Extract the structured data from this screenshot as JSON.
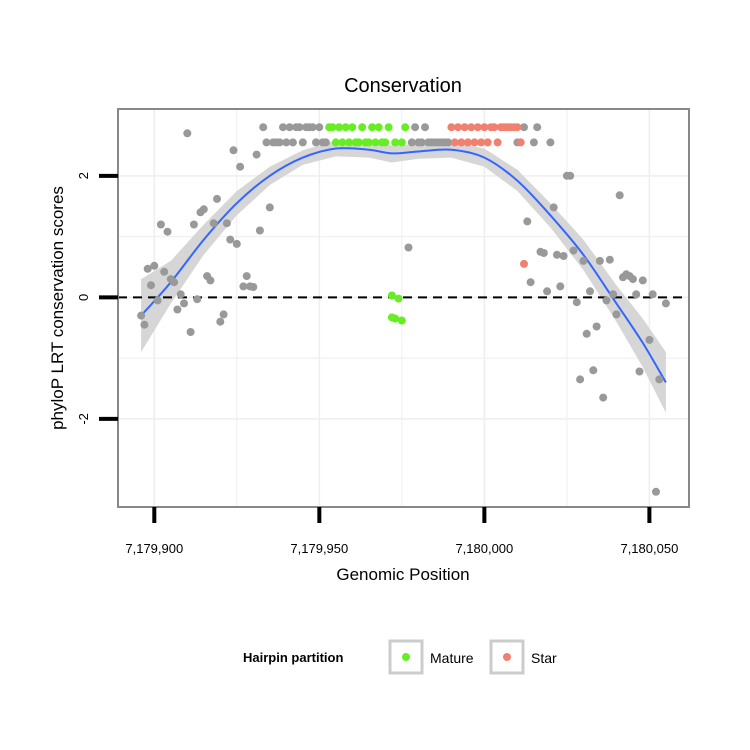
{
  "chart_data": {
    "type": "scatter",
    "title": "Conservation",
    "xlabel": "Genomic Position",
    "ylabel": "phyloP LRT conservation scores",
    "xlim": [
      7179889,
      7180062
    ],
    "ylim": [
      -3.45,
      3.1
    ],
    "x_ticks": [
      {
        "value": 7179900,
        "label": "7,179,900"
      },
      {
        "value": 7179950,
        "label": "7,179,950"
      },
      {
        "value": 7180000,
        "label": "7,180,000"
      },
      {
        "value": 7180050,
        "label": "7,180,050"
      }
    ],
    "y_ticks": [
      {
        "value": -2,
        "label": "-2"
      },
      {
        "value": 0,
        "label": "0"
      },
      {
        "value": 2,
        "label": "2"
      }
    ],
    "x_minor_grid": [
      7179925,
      7179975,
      7180025
    ],
    "y_minor_grid": [
      -1,
      1
    ],
    "reference_line": {
      "y": 0,
      "style": "dashed"
    },
    "legend": {
      "title": "Hairpin partition",
      "entries": [
        {
          "label": "Mature",
          "color": "#66ee22"
        },
        {
          "label": "Star",
          "color": "#f08070"
        }
      ]
    },
    "colors": {
      "other": "#999999",
      "mature": "#66ee22",
      "star": "#f08070",
      "smooth": "#3366ff",
      "band": "#d4d4d4",
      "panel_border": "#888888",
      "grid": "#eeeeee"
    },
    "series": [
      {
        "name": "Other",
        "points": [
          [
            7179896,
            -0.3
          ],
          [
            7179897,
            -0.45
          ],
          [
            7179898,
            0.47
          ],
          [
            7179899,
            0.2
          ],
          [
            7179900,
            0.52
          ],
          [
            7179901,
            -0.05
          ],
          [
            7179902,
            1.2
          ],
          [
            7179903,
            0.42
          ],
          [
            7179904,
            1.08
          ],
          [
            7179905,
            0.3
          ],
          [
            7179906,
            0.25
          ],
          [
            7179907,
            -0.2
          ],
          [
            7179908,
            0.05
          ],
          [
            7179909,
            -0.1
          ],
          [
            7179910,
            2.7
          ],
          [
            7179911,
            -0.57
          ],
          [
            7179912,
            1.2
          ],
          [
            7179913,
            -0.03
          ],
          [
            7179914,
            1.4
          ],
          [
            7179915,
            1.45
          ],
          [
            7179916,
            0.35
          ],
          [
            7179917,
            0.28
          ],
          [
            7179918,
            1.22
          ],
          [
            7179919,
            1.62
          ],
          [
            7179920,
            -0.4
          ],
          [
            7179921,
            -0.28
          ],
          [
            7179922,
            1.22
          ],
          [
            7179923,
            0.95
          ],
          [
            7179924,
            2.42
          ],
          [
            7179925,
            0.88
          ],
          [
            7179926,
            2.15
          ],
          [
            7179927,
            0.18
          ],
          [
            7179928,
            0.35
          ],
          [
            7179929,
            0.18
          ],
          [
            7179930,
            0.17
          ],
          [
            7179931,
            2.35
          ],
          [
            7179932,
            1.1
          ],
          [
            7179933,
            2.8
          ],
          [
            7179934,
            2.55
          ],
          [
            7179935,
            1.48
          ],
          [
            7179936,
            2.55
          ],
          [
            7179937,
            2.55
          ],
          [
            7179938,
            2.55
          ],
          [
            7179939,
            2.8
          ],
          [
            7179940,
            2.55
          ],
          [
            7179941,
            2.8
          ],
          [
            7179942,
            2.55
          ],
          [
            7179943,
            2.8
          ],
          [
            7179944,
            2.8
          ],
          [
            7179945,
            2.55
          ],
          [
            7179946,
            2.8
          ],
          [
            7179947,
            2.8
          ],
          [
            7179948,
            2.8
          ],
          [
            7179949,
            2.55
          ],
          [
            7179950,
            2.8
          ],
          [
            7179951,
            2.55
          ],
          [
            7179952,
            2.55
          ],
          [
            7179977,
            0.82
          ],
          [
            7179978,
            2.55
          ],
          [
            7179979,
            2.8
          ],
          [
            7179980,
            2.55
          ],
          [
            7179981,
            2.55
          ],
          [
            7179982,
            2.8
          ],
          [
            7179983,
            2.55
          ],
          [
            7179984,
            2.55
          ],
          [
            7179985,
            2.55
          ],
          [
            7179986,
            2.55
          ],
          [
            7179987,
            2.55
          ],
          [
            7179988,
            2.55
          ],
          [
            7179989,
            2.55
          ],
          [
            7180010,
            2.55
          ],
          [
            7180012,
            2.8
          ],
          [
            7180013,
            1.25
          ],
          [
            7180014,
            0.25
          ],
          [
            7180015,
            2.55
          ],
          [
            7180016,
            2.8
          ],
          [
            7180017,
            0.75
          ],
          [
            7180018,
            0.73
          ],
          [
            7180019,
            0.1
          ],
          [
            7180020,
            2.55
          ],
          [
            7180021,
            1.48
          ],
          [
            7180022,
            0.7
          ],
          [
            7180023,
            0.18
          ],
          [
            7180024,
            0.68
          ],
          [
            7180025,
            2.0
          ],
          [
            7180026,
            2.0
          ],
          [
            7180027,
            0.77
          ],
          [
            7180028,
            -0.08
          ],
          [
            7180029,
            -1.35
          ],
          [
            7180030,
            0.6
          ],
          [
            7180031,
            -0.6
          ],
          [
            7180032,
            0.1
          ],
          [
            7180033,
            -1.2
          ],
          [
            7180034,
            -0.48
          ],
          [
            7180035,
            0.6
          ],
          [
            7180036,
            -1.65
          ],
          [
            7180037,
            -0.05
          ],
          [
            7180038,
            0.62
          ],
          [
            7180039,
            0.05
          ],
          [
            7180040,
            -0.28
          ],
          [
            7180041,
            1.68
          ],
          [
            7180042,
            0.33
          ],
          [
            7180043,
            0.38
          ],
          [
            7180044,
            0.35
          ],
          [
            7180045,
            0.3
          ],
          [
            7180046,
            0.05
          ],
          [
            7180047,
            -1.22
          ],
          [
            7180048,
            0.28
          ],
          [
            7180050,
            -0.7
          ],
          [
            7180051,
            0.05
          ],
          [
            7180052,
            -3.2
          ],
          [
            7180053,
            -1.35
          ],
          [
            7180055,
            -0.1
          ]
        ]
      },
      {
        "name": "Mature",
        "points": [
          [
            7179953,
            2.8
          ],
          [
            7179954,
            2.8
          ],
          [
            7179955,
            2.55
          ],
          [
            7179956,
            2.8
          ],
          [
            7179957,
            2.55
          ],
          [
            7179958,
            2.8
          ],
          [
            7179959,
            2.55
          ],
          [
            7179960,
            2.8
          ],
          [
            7179961,
            2.55
          ],
          [
            7179962,
            2.55
          ],
          [
            7179963,
            2.8
          ],
          [
            7179964,
            2.55
          ],
          [
            7179965,
            2.55
          ],
          [
            7179966,
            2.8
          ],
          [
            7179967,
            2.55
          ],
          [
            7179968,
            2.8
          ],
          [
            7179969,
            2.55
          ],
          [
            7179970,
            2.55
          ],
          [
            7179971,
            2.8
          ],
          [
            7179972,
            0.03
          ],
          [
            7179972,
            -0.33
          ],
          [
            7179973,
            2.55
          ],
          [
            7179973,
            -0.35
          ],
          [
            7179974,
            -0.02
          ],
          [
            7179975,
            -0.38
          ],
          [
            7179975,
            2.55
          ],
          [
            7179976,
            2.8
          ]
        ]
      },
      {
        "name": "Star",
        "points": [
          [
            7179990,
            2.8
          ],
          [
            7179991,
            2.55
          ],
          [
            7179992,
            2.8
          ],
          [
            7179993,
            2.55
          ],
          [
            7179994,
            2.8
          ],
          [
            7179995,
            2.55
          ],
          [
            7179996,
            2.8
          ],
          [
            7179997,
            2.55
          ],
          [
            7179998,
            2.8
          ],
          [
            7179999,
            2.55
          ],
          [
            7180000,
            2.8
          ],
          [
            7180001,
            2.55
          ],
          [
            7180002,
            2.8
          ],
          [
            7180003,
            2.8
          ],
          [
            7180004,
            2.55
          ],
          [
            7180005,
            2.8
          ],
          [
            7180006,
            2.8
          ],
          [
            7180007,
            2.8
          ],
          [
            7180008,
            2.8
          ],
          [
            7180009,
            2.8
          ],
          [
            7180010,
            2.8
          ],
          [
            7180011,
            2.55
          ],
          [
            7180012,
            0.55
          ]
        ]
      }
    ],
    "smooth": {
      "x": [
        7179896,
        7179905,
        7179915,
        7179925,
        7179935,
        7179945,
        7179955,
        7179965,
        7179972,
        7179980,
        7179990,
        7180000,
        7180010,
        7180020,
        7180030,
        7180040,
        7180048,
        7180055
      ],
      "y": [
        -0.3,
        0.25,
        0.95,
        1.55,
        2.0,
        2.3,
        2.45,
        2.43,
        2.37,
        2.4,
        2.43,
        2.3,
        1.92,
        1.35,
        0.7,
        -0.1,
        -0.75,
        -1.4
      ],
      "lower": [
        -0.9,
        -0.1,
        0.7,
        1.35,
        1.85,
        2.18,
        2.32,
        2.3,
        2.22,
        2.28,
        2.3,
        2.15,
        1.75,
        1.15,
        0.45,
        -0.4,
        -1.15,
        -1.9
      ],
      "upper": [
        0.3,
        0.6,
        1.2,
        1.75,
        2.15,
        2.42,
        2.58,
        2.56,
        2.5,
        2.52,
        2.56,
        2.45,
        2.1,
        1.55,
        0.95,
        0.2,
        -0.35,
        -0.9
      ]
    }
  }
}
